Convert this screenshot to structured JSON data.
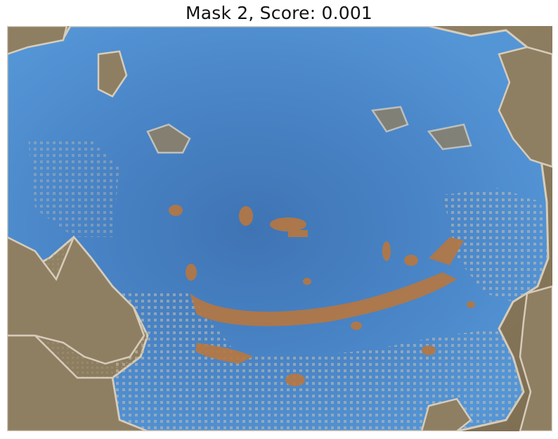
{
  "title": "Mask 2, Score: 0.001",
  "image": {
    "kind": "photo with segmentation mask overlay",
    "colors": {
      "background_sand": "#8d7d60",
      "mask_blue": "#4f8fd0",
      "mask_blue_dark": "#3f78bc",
      "mask_outline": "#d6ccbb",
      "rust_stain": "#b77740"
    }
  }
}
